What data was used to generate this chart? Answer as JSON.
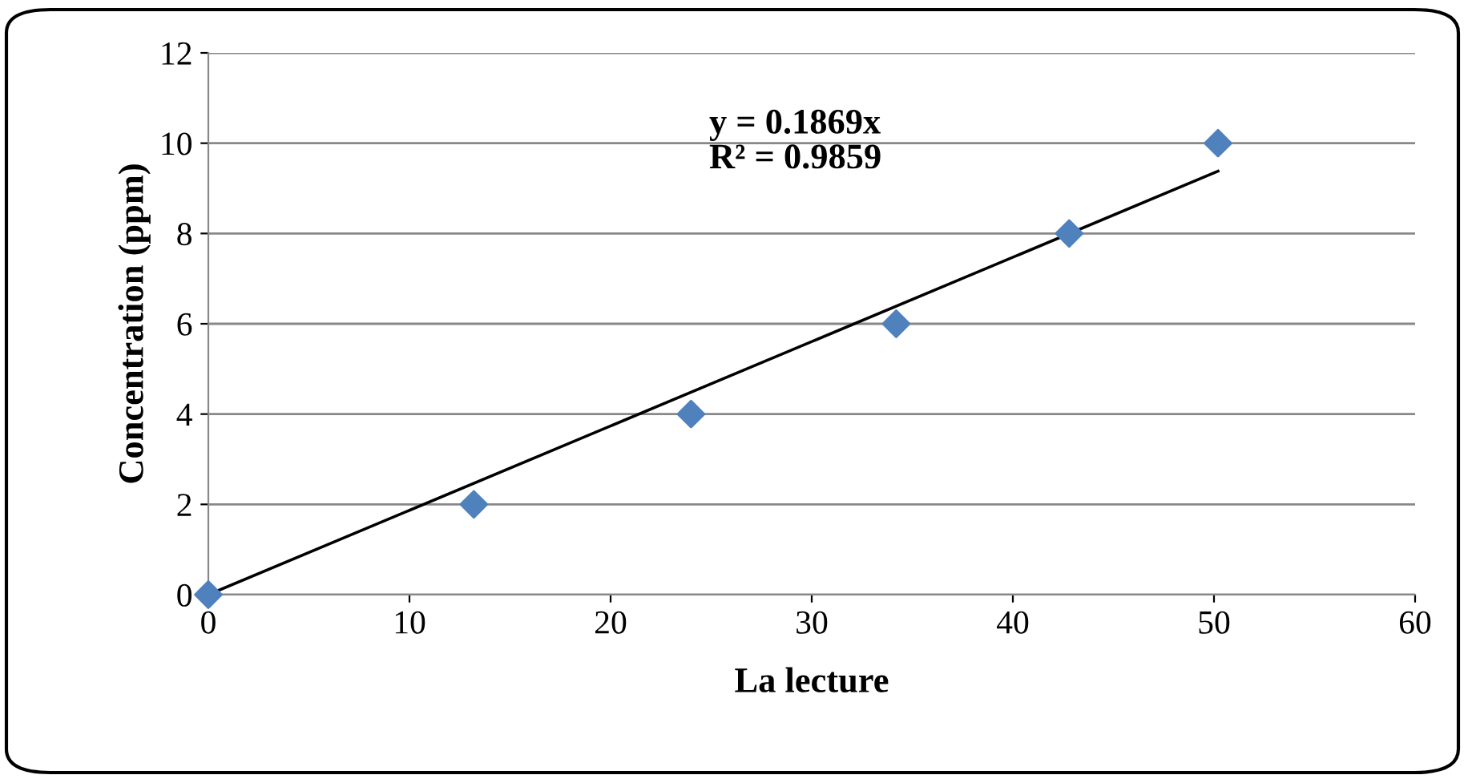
{
  "chart_data": {
    "type": "scatter",
    "xlabel": "La lecture",
    "ylabel": "Concentration (ppm)",
    "xlim": [
      0,
      60
    ],
    "xticks": [
      0,
      10,
      20,
      30,
      40,
      50,
      60
    ],
    "ylim": [
      0,
      12
    ],
    "yticks": [
      0,
      2,
      4,
      6,
      8,
      10,
      12
    ],
    "grid": "y",
    "marker": "diamond",
    "legend": false,
    "series": [
      {
        "color": "#4f81bd",
        "x": [
          0,
          13.2,
          24,
          34.2,
          42.8,
          50.2
        ],
        "values": [
          0,
          2,
          4,
          6,
          8,
          10
        ]
      },
      {
        "type": "line",
        "color": "#000000",
        "marker": "none",
        "x": [
          0,
          50.2
        ],
        "values": [
          0,
          9.38
        ]
      }
    ],
    "annotations": [
      "y = 0.1869x\nR² = 0.9859"
    ]
  }
}
